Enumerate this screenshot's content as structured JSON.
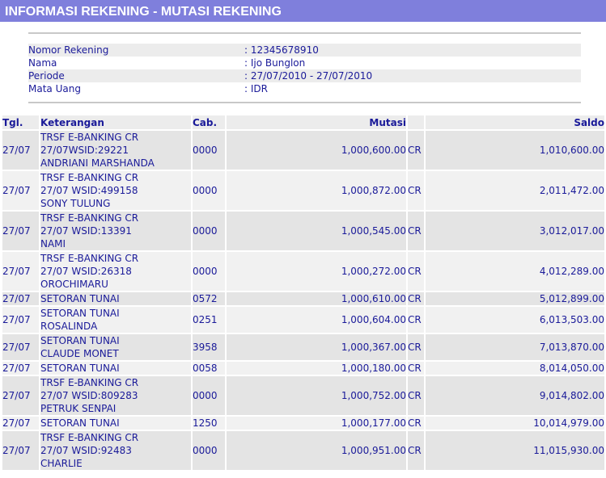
{
  "header": {
    "title": "INFORMASI REKENING - MUTASI REKENING"
  },
  "info": [
    {
      "label": "Nomor Rekening",
      "value": ": 12345678910"
    },
    {
      "label": "Nama",
      "value": ": Ijo Bunglon"
    },
    {
      "label": "Periode",
      "value": ": 27/07/2010 - 27/07/2010"
    },
    {
      "label": "Mata Uang",
      "value": ": IDR"
    }
  ],
  "table": {
    "columns": [
      "Tgl.",
      "Keterangan",
      "Cab.",
      "Mutasi",
      "Saldo"
    ],
    "rows": [
      {
        "tgl": "27/07",
        "ket": [
          "TRSF E-BANKING CR",
          "27/07WSID:29221",
          "ANDRIANI MARSHANDA"
        ],
        "cab": "0000",
        "mutasi": "1,000,600.00",
        "type": "CR",
        "saldo": "1,010,600.00"
      },
      {
        "tgl": "27/07",
        "ket": [
          "TRSF E-BANKING CR",
          "27/07 WSID:499158",
          "SONY TULUNG"
        ],
        "cab": "0000",
        "mutasi": "1,000,872.00",
        "type": "CR",
        "saldo": "2,011,472.00"
      },
      {
        "tgl": "27/07",
        "ket": [
          "TRSF E-BANKING CR",
          "27/07 WSID:13391",
          "NAMI"
        ],
        "cab": "0000",
        "mutasi": "1,000,545.00",
        "type": "CR",
        "saldo": "3,012,017.00"
      },
      {
        "tgl": "27/07",
        "ket": [
          "TRSF E-BANKING CR",
          "27/07 WSID:26318",
          "OROCHIMARU"
        ],
        "cab": "0000",
        "mutasi": "1,000,272.00",
        "type": "CR",
        "saldo": "4,012,289.00"
      },
      {
        "tgl": "27/07",
        "ket": [
          "SETORAN TUNAI"
        ],
        "cab": "0572",
        "mutasi": "1,000,610.00",
        "type": "CR",
        "saldo": "5,012,899.00"
      },
      {
        "tgl": "27/07",
        "ket": [
          "SETORAN TUNAI",
          "ROSALINDA"
        ],
        "cab": "0251",
        "mutasi": "1,000,604.00",
        "type": "CR",
        "saldo": "6,013,503.00"
      },
      {
        "tgl": "27/07",
        "ket": [
          "SETORAN TUNAI",
          "CLAUDE MONET"
        ],
        "cab": "3958",
        "mutasi": "1,000,367.00",
        "type": "CR",
        "saldo": "7,013,870.00"
      },
      {
        "tgl": "27/07",
        "ket": [
          "SETORAN TUNAI"
        ],
        "cab": "0058",
        "mutasi": "1,000,180.00",
        "type": "CR",
        "saldo": "8,014,050.00"
      },
      {
        "tgl": "27/07",
        "ket": [
          "TRSF E-BANKING CR",
          "27/07 WSID:809283",
          "PETRUK SENPAI"
        ],
        "cab": "0000",
        "mutasi": "1,000,752.00",
        "type": "CR",
        "saldo": "9,014,802.00"
      },
      {
        "tgl": "27/07",
        "ket": [
          "SETORAN TUNAI"
        ],
        "cab": "1250",
        "mutasi": "1,000,177.00",
        "type": "CR",
        "saldo": "10,014,979.00"
      },
      {
        "tgl": "27/07",
        "ket": [
          "TRSF E-BANKING CR",
          "27/07 WSID:92483",
          "CHARLIE"
        ],
        "cab": "0000",
        "mutasi": "1,000,951.00",
        "type": "CR",
        "saldo": "11,015,930.00"
      }
    ]
  }
}
